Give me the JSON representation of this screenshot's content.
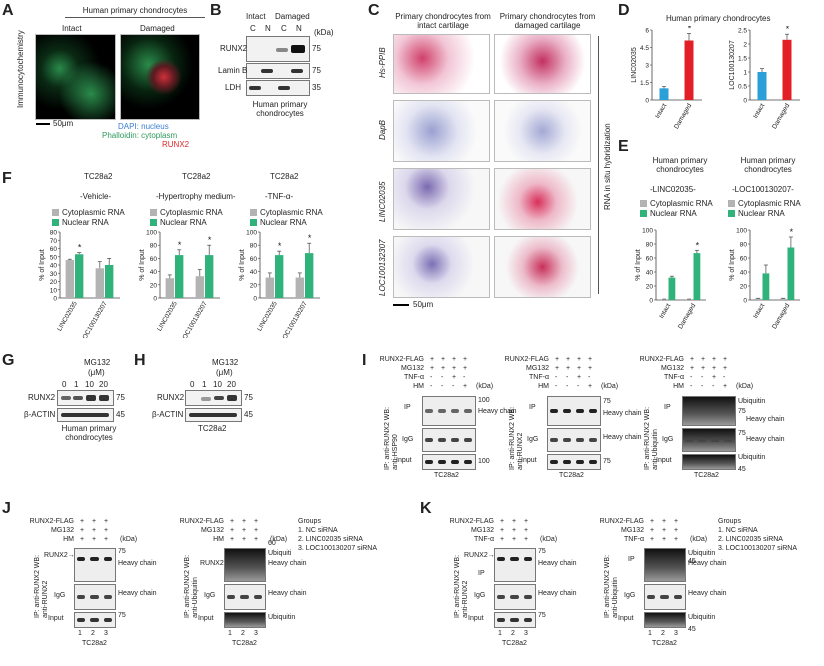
{
  "panels": {
    "a": {
      "letter": "A",
      "header": "Human primary chondrocytes",
      "intact": "Intact",
      "damaged": "Damaged",
      "side": "Immunocytochemistry",
      "scale": "50μm",
      "legend": [
        "DAPI: nucleus",
        "Phalloidin: cytoplasm",
        "RUNX2"
      ],
      "legend_colors": [
        "#3a7fd5",
        "#2e9a5d",
        "#e0262b"
      ]
    },
    "b": {
      "letter": "B",
      "intact": "Intact",
      "damaged": "Damaged",
      "lanes": [
        "C",
        "N",
        "C",
        "N"
      ],
      "kda": "(kDa)",
      "rows": [
        "RUNX2",
        "Lamin B",
        "LDH"
      ],
      "sizes": [
        "75",
        "75",
        "35"
      ],
      "caption": "Human primary chondrocytes"
    },
    "c": {
      "letter": "C",
      "col1": "Primary chondrocytes from intact cartilage",
      "col2": "Primary chondrocytes from damaged cartilage",
      "intact_word": "intact",
      "damaged_word": "damaged",
      "rows": [
        "Hs-PPIB",
        "DapB",
        "LINC02035",
        "LOC100132307"
      ],
      "side": "RNA in situ hybridization",
      "scale": "50μm"
    },
    "d": {
      "letter": "D",
      "header": "Human primary chondrocytes",
      "star": "*"
    },
    "e": {
      "letter": "E",
      "hdr1": "Human primary chondrocytes",
      "sub1": "-LINC02035-",
      "hdr2": "Human primary chondrocytes",
      "sub2": "-LOC100130207-",
      "legend": [
        "Cytoplasmic RNA",
        "Nuclear RNA"
      ]
    },
    "f": {
      "letter": "F",
      "cell": "TC28a2",
      "conditions": [
        "-Vehicle-",
        "-Hypertrophy medium-",
        "-TNF-α-"
      ],
      "legend": [
        "Cytoplasmic RNA",
        "Nuclear RNA"
      ]
    },
    "g": {
      "letter": "G",
      "drug": "MG132",
      "unit": "(μM)",
      "doses": [
        "0",
        "1",
        "10",
        "20"
      ],
      "rows": [
        "RUNX2",
        "β-ACTIN"
      ],
      "sizes": [
        "75",
        "45"
      ],
      "caption": "Human primary chondrocytes"
    },
    "h": {
      "letter": "H",
      "drug": "MG132",
      "unit": "(μM)",
      "doses": [
        "0",
        "1",
        "10",
        "20"
      ],
      "rows": [
        "RUNX2",
        "β-ACTIN"
      ],
      "sizes": [
        "75",
        "45"
      ],
      "caption": "TC28a2"
    },
    "i": {
      "letter": "I",
      "conds": [
        "RUNX2-FLAG",
        "MG132",
        "TNF-α",
        "HM"
      ],
      "kda": "(kDa)",
      "caption": "TC28a2",
      "sides": [
        "IP: anti-RUNX2 WB: anti-HSP90",
        "IP: anti-RUNX2 WB: anti-RUNX2",
        "IP: anti-RUNX2 WB: anti-Ubiquitin"
      ],
      "rowlabels": [
        "IP",
        "IgG",
        "Input"
      ],
      "heavy": "Heavy chain",
      "ubiquitin": "Ubiquitin",
      "m1": [
        "100",
        "100"
      ],
      "m2": [
        "75",
        "75"
      ],
      "m3": [
        "75",
        "75",
        "45"
      ]
    },
    "j": {
      "letter": "J",
      "conds": [
        "RUNX2-FLAG",
        "MG132",
        "HM"
      ],
      "kda": "(kDa)",
      "lanes": [
        "1",
        "2",
        "3"
      ],
      "caption": "TC28a2",
      "runx2": "RUNX2→",
      "sides": [
        "IP: anti-RUNX2 WB: anti-RUNX2",
        "IP: anti-RUNX2 WB: anti-Ubiquitin"
      ],
      "rowlabels": [
        "IgG",
        "Input"
      ],
      "heavy": "Heavy chain",
      "ubiquitin": "Ubiquitin",
      "groups_title": "Groups",
      "groups": [
        "1.  NC siRNA",
        "2.  LINC02035 siRNA",
        "3.  LOC100130207 siRNA"
      ],
      "m": [
        "75",
        "75"
      ],
      "runx2lbl": "RUNX2",
      "ubi_top": "Ubiquiti",
      "ubi_kda": "60"
    },
    "k": {
      "letter": "K",
      "conds": [
        "RUNX2-FLAG",
        "MG132",
        "TNF-α"
      ],
      "kda": "(kDa)",
      "lanes": [
        "1",
        "2",
        "3"
      ],
      "caption": "TC28a2",
      "runx2": "RUNX2→",
      "sides": [
        "IP: anti-RUNX2 WB: anti-RUNX2",
        "IP: anti-RUNX2 WB: anti-Ubiquitin"
      ],
      "rowlabels": [
        "IP",
        "IgG",
        "Input"
      ],
      "heavy": "Heavy chain",
      "ubiquitin": "Ubiquitin",
      "groups_title": "Groups",
      "groups": [
        "1.  NC siRNA",
        "2.  LINC02035 siRNA",
        "3.  LOC100130207 siRNA"
      ],
      "m": [
        "75",
        "75"
      ],
      "m2": [
        "45",
        "45"
      ]
    }
  },
  "signs": {
    "i": [
      [
        "+",
        "+",
        "+",
        "+"
      ],
      [
        "+",
        "+",
        "+",
        "+"
      ],
      [
        "-",
        "-",
        "+",
        "-"
      ],
      [
        "-",
        "-",
        "-",
        "+"
      ]
    ],
    "jk": [
      [
        "+",
        "+",
        "+"
      ],
      [
        "+",
        "+",
        "+"
      ],
      [
        "+",
        "+",
        "+"
      ]
    ]
  },
  "colors": {
    "intact": "#2a9fd8",
    "damaged": "#e21f26",
    "cyto": "#b3b3b3",
    "nuc": "#2fb37b"
  },
  "chart_data": [
    {
      "type": "bar",
      "panel": "D-left",
      "categories": [
        "Intact",
        "Damaged"
      ],
      "values": [
        1,
        5.1
      ],
      "errors": [
        0.15,
        0.6
      ],
      "ylabel": "LINC02035",
      "ylim": [
        0,
        6
      ],
      "yticks": [
        0,
        1.5,
        3,
        4.5,
        6
      ],
      "colors": [
        "#2a9fd8",
        "#e21f26"
      ],
      "significance": [
        false,
        true
      ]
    },
    {
      "type": "bar",
      "panel": "D-right",
      "categories": [
        "Intact",
        "Damaged"
      ],
      "values": [
        1,
        2.15
      ],
      "errors": [
        0.12,
        0.2
      ],
      "ylabel": "LOC100130207",
      "ylim": [
        0,
        2.5
      ],
      "yticks": [
        0,
        0.5,
        1,
        1.5,
        2,
        2.5
      ],
      "colors": [
        "#2a9fd8",
        "#e21f26"
      ],
      "significance": [
        false,
        true
      ]
    },
    {
      "type": "bar",
      "panel": "E-left",
      "categories": [
        "Intact",
        "Damaged"
      ],
      "series": [
        {
          "name": "Cytoplasmic RNA",
          "values": [
            1,
            1
          ],
          "errors": [
            0.3,
            0.3
          ]
        },
        {
          "name": "Nuclear RNA",
          "values": [
            32,
            67
          ],
          "errors": [
            2,
            4
          ]
        }
      ],
      "ylabel": "% of Input",
      "ylim": [
        0,
        100
      ],
      "yticks": [
        0,
        20,
        40,
        60,
        80,
        100
      ],
      "significance": [
        false,
        true
      ]
    },
    {
      "type": "bar",
      "panel": "E-right",
      "categories": [
        "Intact",
        "Damaged"
      ],
      "series": [
        {
          "name": "Cytoplasmic RNA",
          "values": [
            2,
            2
          ],
          "errors": [
            0.5,
            0.5
          ]
        },
        {
          "name": "Nuclear RNA",
          "values": [
            38,
            75
          ],
          "errors": [
            12,
            15
          ]
        }
      ],
      "ylabel": "% of Input",
      "ylim": [
        0,
        100
      ],
      "yticks": [
        0,
        20,
        40,
        60,
        80,
        100
      ],
      "significance": [
        false,
        true
      ]
    },
    {
      "type": "bar",
      "panel": "F-vehicle",
      "categories": [
        "LINC02035",
        "LOC100130207"
      ],
      "series": [
        {
          "name": "Cytoplasmic RNA",
          "values": [
            46,
            36
          ],
          "errors": [
            1,
            8
          ]
        },
        {
          "name": "Nuclear RNA",
          "values": [
            53,
            40
          ],
          "errors": [
            2,
            8
          ]
        }
      ],
      "ylabel": "% of Input",
      "ylim": [
        0,
        80
      ],
      "yticks": [
        0,
        10,
        20,
        30,
        40,
        50,
        60,
        70,
        80
      ],
      "significance": [
        true,
        false
      ]
    },
    {
      "type": "bar",
      "panel": "F-hypertrophy",
      "categories": [
        "LINC02035",
        "LOC100130207"
      ],
      "series": [
        {
          "name": "Cytoplasmic RNA",
          "values": [
            30,
            33
          ],
          "errors": [
            5,
            10
          ]
        },
        {
          "name": "Nuclear RNA",
          "values": [
            65,
            65
          ],
          "errors": [
            8,
            15
          ]
        }
      ],
      "ylabel": "% of Input",
      "ylim": [
        0,
        100
      ],
      "yticks": [
        0,
        20,
        40,
        60,
        80,
        100
      ],
      "significance": [
        true,
        true
      ]
    },
    {
      "type": "bar",
      "panel": "F-TNF",
      "categories": [
        "LINC02035",
        "LOC100130207"
      ],
      "series": [
        {
          "name": "Cytoplasmic RNA",
          "values": [
            31,
            31
          ],
          "errors": [
            7,
            7
          ]
        },
        {
          "name": "Nuclear RNA",
          "values": [
            65,
            68
          ],
          "errors": [
            6,
            15
          ]
        }
      ],
      "ylabel": "% of Input",
      "ylim": [
        0,
        100
      ],
      "yticks": [
        0,
        20,
        40,
        60,
        80,
        100
      ],
      "significance": [
        true,
        true
      ]
    }
  ]
}
